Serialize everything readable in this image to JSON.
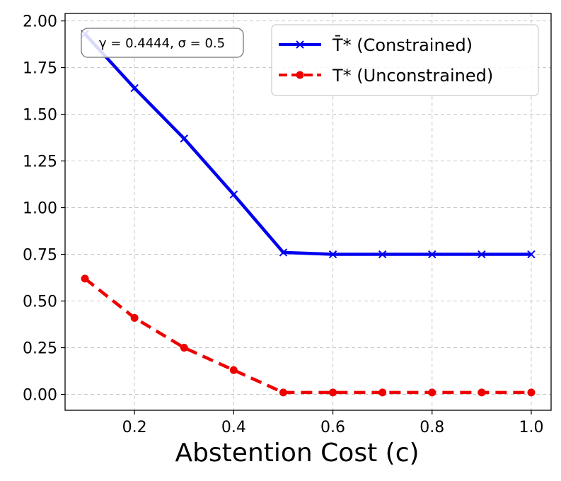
{
  "chart_data": {
    "type": "line",
    "title": "",
    "xlabel": "Abstention Cost (c)",
    "ylabel": "",
    "xlim": [
      0.06,
      1.04
    ],
    "ylim": [
      -0.085,
      2.04
    ],
    "xticks": [
      0.2,
      0.4,
      0.6,
      0.8,
      1.0
    ],
    "xtick_labels": [
      "0.2",
      "0.4",
      "0.6",
      "0.8",
      "1.0"
    ],
    "yticks": [
      0.0,
      0.25,
      0.5,
      0.75,
      1.0,
      1.25,
      1.5,
      1.75,
      2.0
    ],
    "ytick_labels": [
      "0.00",
      "0.25",
      "0.50",
      "0.75",
      "1.00",
      "1.25",
      "1.50",
      "1.75",
      "2.00"
    ],
    "grid": true,
    "legend_position": "top-right",
    "annotation": "γ = 0.4444, σ = 0.5",
    "x": [
      0.1,
      0.2,
      0.3,
      0.4,
      0.5,
      0.6,
      0.7,
      0.8,
      0.9,
      1.0
    ],
    "series": [
      {
        "name": "T̄* (Constrained)",
        "values": [
          1.93,
          1.64,
          1.37,
          1.07,
          0.76,
          0.75,
          0.75,
          0.75,
          0.75,
          0.75
        ],
        "color": "#0000ee",
        "line_style": "solid",
        "marker": "x"
      },
      {
        "name": "T* (Unconstrained)",
        "values": [
          0.62,
          0.41,
          0.25,
          0.13,
          0.01,
          0.01,
          0.01,
          0.01,
          0.01,
          0.01
        ],
        "color": "#ee0000",
        "line_style": "dashed",
        "marker": "circle"
      }
    ]
  }
}
